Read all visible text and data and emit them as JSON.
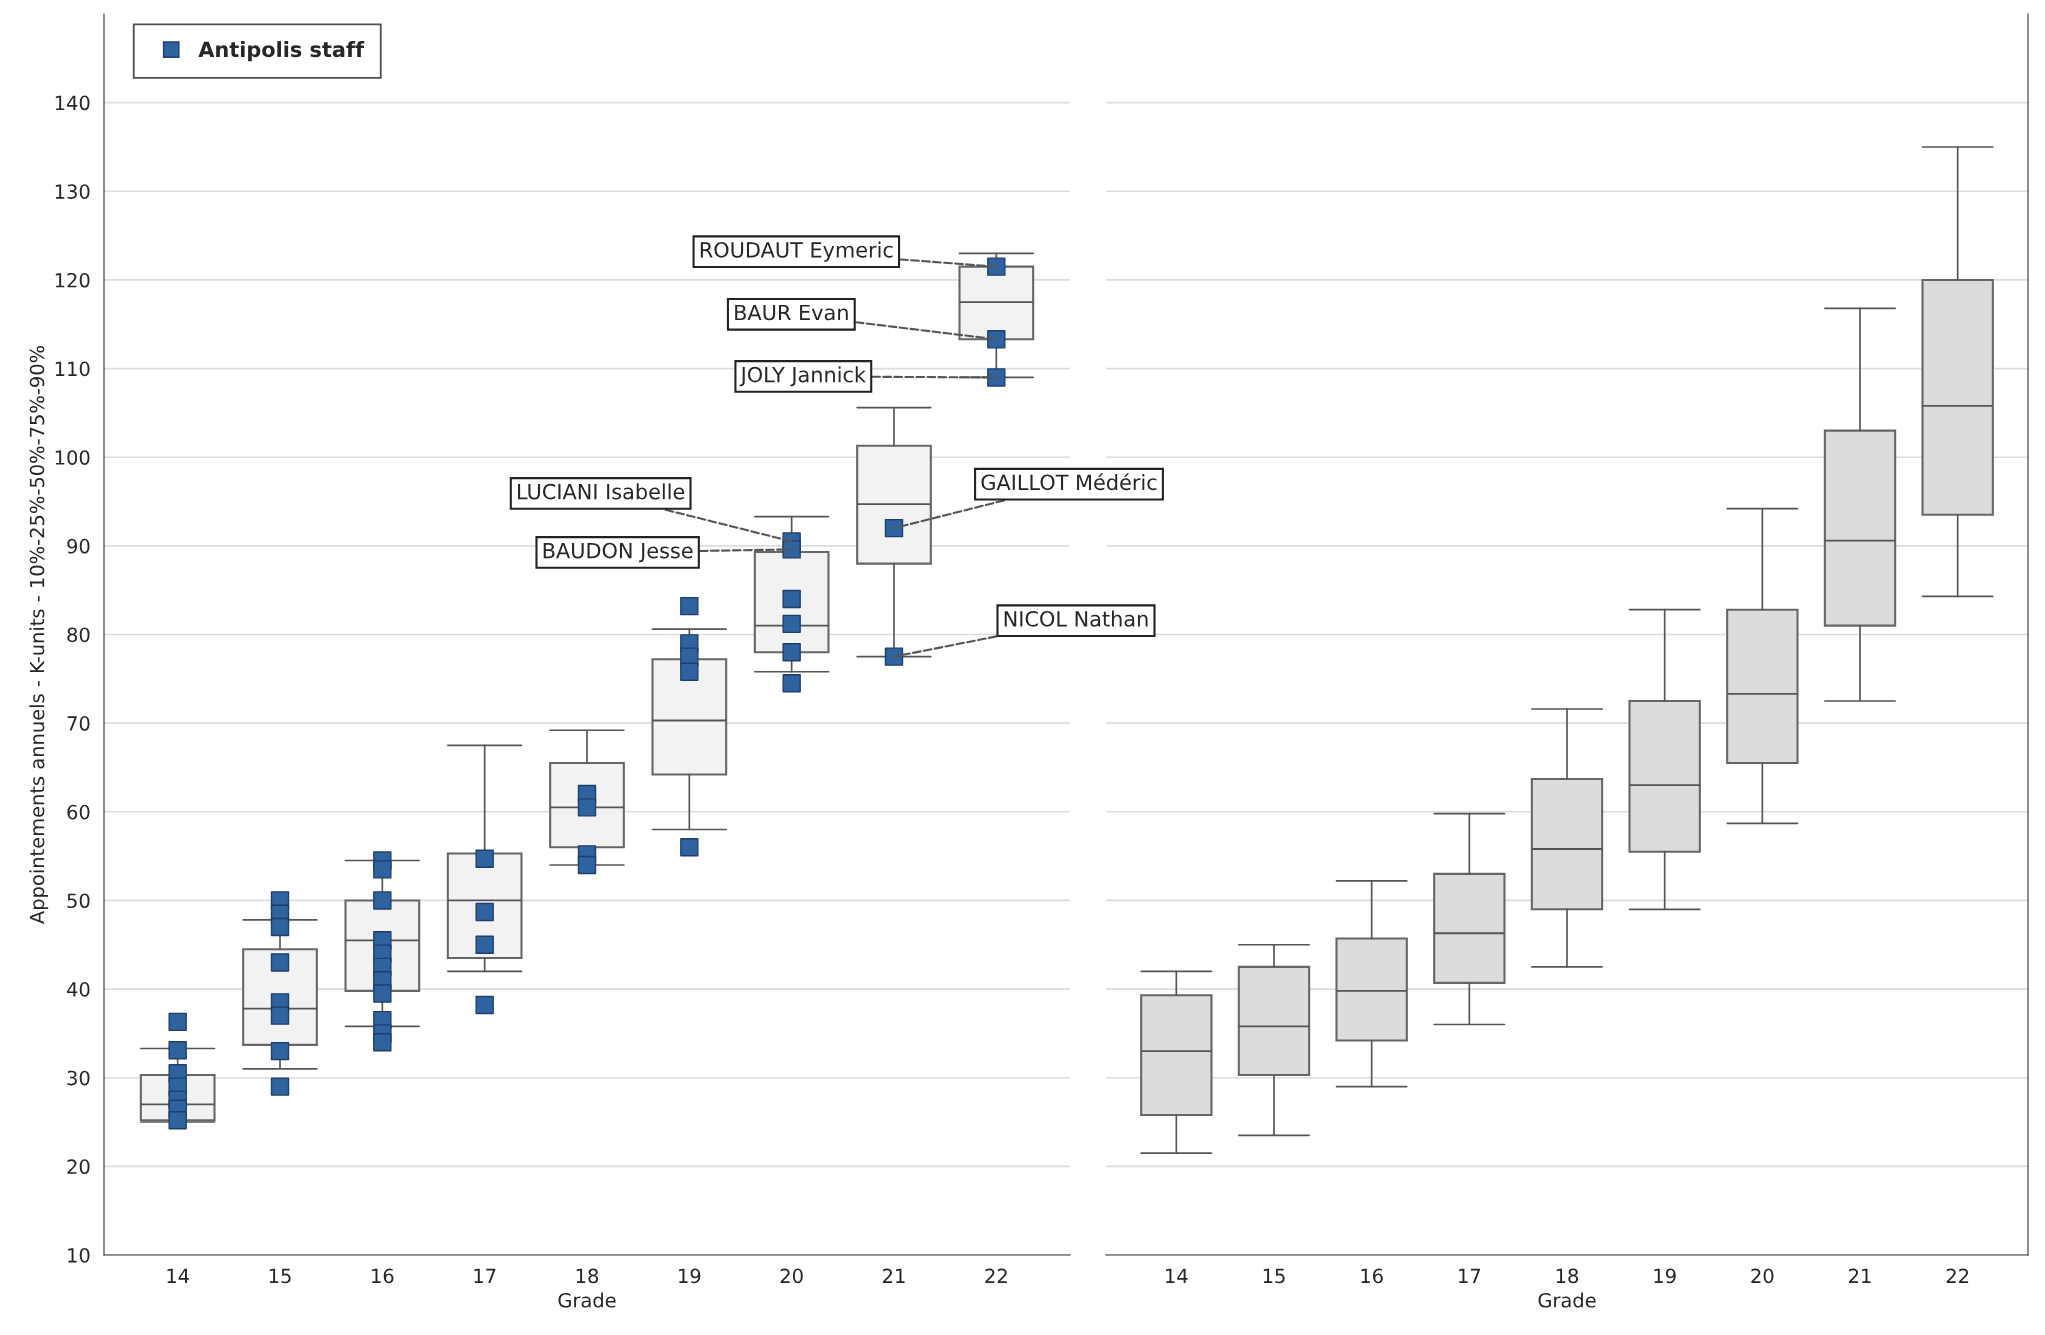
{
  "chart_data": [
    {
      "type": "box",
      "xlabel": "Grade",
      "ylabel": "Appointements annuels - K-units - 10%-25%-50%-75%-90%",
      "categories": [
        "14",
        "15",
        "16",
        "17",
        "18",
        "19",
        "20",
        "21",
        "22"
      ],
      "ylim": [
        10,
        150
      ],
      "yticks": [
        10,
        20,
        30,
        40,
        50,
        60,
        70,
        80,
        90,
        100,
        110,
        120,
        130,
        140
      ],
      "grid": "y",
      "legend": "top left",
      "marker": "square",
      "series": [
        {
          "type": "box",
          "color": "#f2f2f2",
          "boxes": [
            {
              "low": 25,
              "q1": 25.2,
              "median": 27,
              "q3": 30.3,
              "high": 33.3
            },
            {
              "low": 31,
              "q1": 33.7,
              "median": 37.8,
              "q3": 44.5,
              "high": 47.8
            },
            {
              "low": 35.8,
              "q1": 39.8,
              "median": 45.5,
              "q3": 50,
              "high": 54.5
            },
            {
              "low": 42,
              "q1": 43.5,
              "median": 50,
              "q3": 55.3,
              "high": 67.5
            },
            {
              "low": 54,
              "q1": 56,
              "median": 60.5,
              "q3": 65.5,
              "high": 69.2
            },
            {
              "low": 58,
              "q1": 64.2,
              "median": 70.3,
              "q3": 77.2,
              "high": 80.6
            },
            {
              "low": 75.8,
              "q1": 78,
              "median": 81,
              "q3": 89.3,
              "high": 93.3
            },
            {
              "low": 77.5,
              "q1": 88,
              "median": 94.7,
              "q3": 101.3,
              "high": 105.6
            },
            {
              "low": 109,
              "q1": 113.3,
              "median": 117.5,
              "q3": 121.5,
              "high": 123
            }
          ]
        },
        {
          "type": "scatter",
          "name": "Antipolis staff",
          "color": "#2e63a0",
          "x": [
            "14",
            "14",
            "14",
            "14",
            "14",
            "14",
            "14",
            "15",
            "15",
            "15",
            "15",
            "15",
            "15",
            "15",
            "15",
            "16",
            "16",
            "16",
            "16",
            "16",
            "16",
            "16",
            "16",
            "16",
            "16",
            "16",
            "17",
            "17",
            "17",
            "17",
            "18",
            "18",
            "18",
            "18",
            "19",
            "19",
            "19",
            "19",
            "19",
            "20",
            "20",
            "20",
            "20",
            "20",
            "20",
            "21",
            "21",
            "22",
            "22",
            "22"
          ],
          "values": [
            36.3,
            33.1,
            30.5,
            29,
            27.5,
            26.5,
            25.2,
            50,
            48.5,
            47,
            43,
            38.5,
            37,
            33,
            29,
            54.5,
            53.5,
            50,
            45.5,
            44,
            42.5,
            41,
            39.5,
            36.5,
            35,
            34,
            54.7,
            48.7,
            45,
            38.2,
            62,
            60.5,
            55.2,
            54,
            83.2,
            79,
            77.5,
            75.8,
            56,
            90.5,
            89.6,
            84,
            81.2,
            78,
            74.5,
            92,
            77.5,
            121.5,
            113.3,
            109
          ]
        }
      ],
      "annotations": [
        {
          "text": "ROUDAUT Eymeric",
          "x": "22",
          "y": 121.5
        },
        {
          "text": "BAUR Evan",
          "x": "22",
          "y": 113.3
        },
        {
          "text": "JOLY Jannick",
          "x": "22",
          "y": 109
        },
        {
          "text": "LUCIANI Isabelle",
          "x": "20",
          "y": 90.5
        },
        {
          "text": "BAUDON Jesse",
          "x": "20",
          "y": 89.6
        },
        {
          "text": "GAILLOT Médéric",
          "x": "21",
          "y": 92
        },
        {
          "text": "NICOL Nathan",
          "x": "21",
          "y": 77.5
        }
      ]
    },
    {
      "type": "box",
      "xlabel": "Grade",
      "categories": [
        "14",
        "15",
        "16",
        "17",
        "18",
        "19",
        "20",
        "21",
        "22"
      ],
      "ylim": [
        10,
        150
      ],
      "yticks": [
        10,
        20,
        30,
        40,
        50,
        60,
        70,
        80,
        90,
        100,
        110,
        120,
        130,
        140
      ],
      "grid": "y",
      "tick_labels": "x",
      "series": [
        {
          "type": "box",
          "color": "#dcdcdc",
          "boxes": [
            {
              "low": 21.5,
              "q1": 25.8,
              "median": 33,
              "q3": 39.3,
              "high": 42
            },
            {
              "low": 23.5,
              "q1": 30.3,
              "median": 35.8,
              "q3": 42.5,
              "high": 45
            },
            {
              "low": 29,
              "q1": 34.2,
              "median": 39.8,
              "q3": 45.7,
              "high": 52.2
            },
            {
              "low": 36,
              "q1": 40.7,
              "median": 46.3,
              "q3": 53,
              "high": 59.8
            },
            {
              "low": 42.5,
              "q1": 49,
              "median": 55.8,
              "q3": 63.7,
              "high": 71.6
            },
            {
              "low": 49,
              "q1": 55.5,
              "median": 63,
              "q3": 72.5,
              "high": 82.8
            },
            {
              "low": 58.7,
              "q1": 65.5,
              "median": 73.3,
              "q3": 82.8,
              "high": 94.2
            },
            {
              "low": 72.5,
              "q1": 81,
              "median": 90.6,
              "q3": 103,
              "high": 116.8
            },
            {
              "low": 84.3,
              "q1": 93.5,
              "median": 105.8,
              "q3": 120,
              "high": 135
            }
          ]
        }
      ]
    }
  ]
}
